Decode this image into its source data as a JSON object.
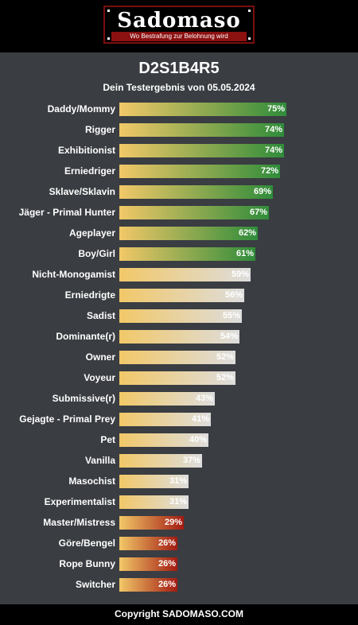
{
  "logo": {
    "name": "Sadomaso",
    "tagline": "Wo Bestrafung zur Belohnung wird"
  },
  "footer": {
    "text": "Copyright SADOMASO.COM"
  },
  "colors": {
    "background": "#3a3d42",
    "bar_start": "#f2c868",
    "green_end": "#2f8c3a",
    "neutral_end": "#dddddd",
    "red_end": "#a31b12"
  },
  "chart_data": {
    "type": "bar",
    "orientation": "horizontal",
    "title": "D2S1B4R5",
    "subtitle": "Dein Testergebnis von 05.05.2024",
    "xlim": [
      0,
      100
    ],
    "categories": [
      "Daddy/Mommy",
      "Rigger",
      "Exhibitionist",
      "Erniedriger",
      "Sklave/Sklavin",
      "Jäger - Primal Hunter",
      "Ageplayer",
      "Boy/Girl",
      "Nicht-Monogamist",
      "Erniedrigte",
      "Sadist",
      "Dominante(r)",
      "Owner",
      "Voyeur",
      "Submissive(r)",
      "Gejagte - Primal Prey",
      "Pet",
      "Vanilla",
      "Masochist",
      "Experimentalist",
      "Master/Mistress",
      "Göre/Bengel",
      "Rope Bunny",
      "Switcher"
    ],
    "values": [
      75,
      74,
      74,
      72,
      69,
      67,
      62,
      61,
      59,
      56,
      55,
      54,
      52,
      52,
      43,
      41,
      40,
      37,
      31,
      31,
      29,
      26,
      26,
      26
    ],
    "value_labels": [
      "75%",
      "74%",
      "74%",
      "72%",
      "69%",
      "67%",
      "62%",
      "61%",
      "59%",
      "56%",
      "55%",
      "54%",
      "52%",
      "52%",
      "43%",
      "41%",
      "40%",
      "37%",
      "31%",
      "31%",
      "29%",
      "26%",
      "26%",
      "26%"
    ],
    "tiers": [
      "high",
      "high",
      "high",
      "high",
      "high",
      "high",
      "high",
      "high",
      "mid",
      "mid",
      "mid",
      "mid",
      "mid",
      "mid",
      "mid",
      "mid",
      "mid",
      "mid",
      "mid",
      "mid",
      "low",
      "low",
      "low",
      "low"
    ]
  }
}
